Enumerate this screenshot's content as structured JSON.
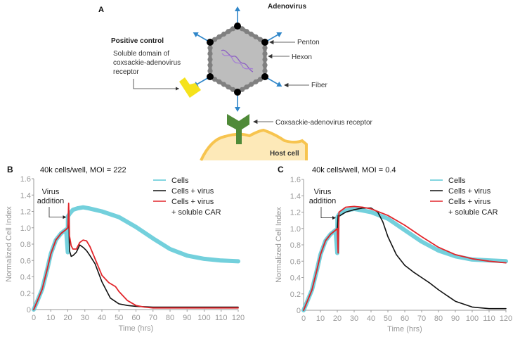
{
  "panel_a": {
    "label": "A",
    "title": "Adenovirus",
    "positive_control": "Positive control",
    "soluble_lines": [
      "Soluble domain of",
      "coxsackie-adenovirus",
      "receptor"
    ],
    "labels": {
      "penton": "Penton",
      "hexon": "Hexon",
      "fiber": "Fiber",
      "receptor": "Coxsackie-adenovirus receptor",
      "host": "Host cell"
    }
  },
  "colors": {
    "cells": "#5bc8d6",
    "virus": "#111111",
    "car": "#e2262b",
    "fiber": "#2f86c9",
    "hexon": "#808080",
    "capsid": "#bdbdbd",
    "dna": "#8b5ec2",
    "car_shape": "#f5e21c",
    "receptor": "#4f8a38",
    "cell_fill": "#fde9b8",
    "cell_edge": "#f7c44f",
    "axis": "#999999"
  },
  "chart_data": [
    {
      "type": "line",
      "panel": "B",
      "title": "40k cells/well, MOI = 222",
      "xlabel": "Time (hrs)",
      "ylabel": "Normalized Cell Index",
      "xlim": [
        0,
        120
      ],
      "ylim": [
        0,
        1.6
      ],
      "xticks": [
        "0",
        "10",
        "20",
        "30",
        "40",
        "50",
        "60",
        "70",
        "80",
        "90",
        "100",
        "110",
        "120"
      ],
      "yticks": [
        "0",
        "0.2",
        "0.4",
        "0.6",
        "0.8",
        "1.0",
        "1.2",
        "1.4",
        "1.6"
      ],
      "annotation": [
        "Virus",
        "addition"
      ],
      "legend": [
        "Cells",
        "Cells + virus",
        "Cells + virus",
        "+ soluble CAR"
      ],
      "legend_position": "top-right",
      "series": [
        {
          "name": "Cells",
          "x": [
            0,
            2,
            5,
            8,
            10,
            13,
            16,
            19,
            20,
            20.1,
            21,
            23,
            26,
            29,
            32,
            40,
            50,
            60,
            70,
            80,
            90,
            100,
            110,
            120
          ],
          "y": [
            0,
            0.1,
            0.25,
            0.5,
            0.68,
            0.85,
            0.93,
            0.98,
            0.7,
            1.14,
            1.17,
            1.22,
            1.24,
            1.25,
            1.24,
            1.2,
            1.13,
            1.01,
            0.87,
            0.74,
            0.66,
            0.62,
            0.6,
            0.59
          ]
        },
        {
          "name": "Cells + virus",
          "x": [
            0,
            2,
            5,
            8,
            10,
            13,
            16,
            19,
            20,
            20.5,
            21,
            22,
            23,
            25,
            27,
            29,
            31,
            33,
            36,
            40,
            45,
            50,
            55,
            60,
            70,
            80,
            90,
            100,
            120
          ],
          "y": [
            0,
            0.1,
            0.25,
            0.5,
            0.68,
            0.85,
            0.93,
            0.98,
            1.0,
            1.18,
            0.72,
            0.65,
            0.66,
            0.7,
            0.79,
            0.76,
            0.72,
            0.66,
            0.56,
            0.34,
            0.14,
            0.07,
            0.05,
            0.04,
            0.03,
            0.03,
            0.03,
            0.03,
            0.03
          ]
        },
        {
          "name": "Cells + virus + soluble CAR",
          "x": [
            0,
            2,
            5,
            8,
            10,
            13,
            16,
            19,
            20,
            20.5,
            21,
            22,
            23,
            25,
            27,
            29,
            31,
            33,
            36,
            40,
            44,
            48,
            50,
            55,
            60,
            65,
            70,
            80,
            90,
            100,
            120
          ],
          "y": [
            0,
            0.1,
            0.25,
            0.5,
            0.68,
            0.85,
            0.93,
            0.98,
            1.0,
            1.3,
            0.9,
            0.78,
            0.74,
            0.74,
            0.82,
            0.85,
            0.84,
            0.77,
            0.62,
            0.42,
            0.33,
            0.28,
            0.22,
            0.11,
            0.05,
            0.03,
            0.02,
            0.02,
            0.02,
            0.02,
            0.02
          ]
        }
      ]
    },
    {
      "type": "line",
      "panel": "C",
      "title": "40k cells/well, MOI = 0.4",
      "xlabel": "Time (hrs)",
      "ylabel": "Normalized Cell Index",
      "xlim": [
        0,
        120
      ],
      "ylim": [
        0,
        1.6
      ],
      "xticks": [
        "0",
        "10",
        "20",
        "30",
        "40",
        "50",
        "60",
        "70",
        "80",
        "90",
        "100",
        "110",
        "120"
      ],
      "yticks": [
        "0",
        "0.2",
        "0.4",
        "0.6",
        "0.8",
        "1.0",
        "1.2",
        "1.4",
        "1.6"
      ],
      "annotation": [
        "Virus",
        "addition"
      ],
      "legend": [
        "Cells",
        "Cells + virus",
        "Cells + virus",
        "+ soluble CAR"
      ],
      "legend_position": "top-right",
      "series": [
        {
          "name": "Cells",
          "x": [
            0,
            2,
            5,
            8,
            10,
            13,
            16,
            19,
            20,
            20.1,
            21,
            25,
            30,
            35,
            40,
            50,
            60,
            70,
            80,
            90,
            100,
            110,
            120
          ],
          "y": [
            0,
            0.1,
            0.25,
            0.5,
            0.68,
            0.85,
            0.93,
            0.98,
            0.7,
            1.14,
            1.17,
            1.22,
            1.24,
            1.22,
            1.2,
            1.12,
            0.98,
            0.84,
            0.73,
            0.66,
            0.62,
            0.61,
            0.6
          ]
        },
        {
          "name": "Cells + virus",
          "x": [
            0,
            2,
            5,
            8,
            10,
            13,
            16,
            19,
            20,
            20.5,
            21,
            25,
            30,
            35,
            40,
            44,
            47,
            50,
            55,
            60,
            65,
            70,
            75,
            80,
            90,
            100,
            110,
            120
          ],
          "y": [
            0,
            0.1,
            0.25,
            0.5,
            0.68,
            0.85,
            0.93,
            0.98,
            1.0,
            1.16,
            1.15,
            1.2,
            1.23,
            1.25,
            1.25,
            1.2,
            1.08,
            0.9,
            0.68,
            0.55,
            0.47,
            0.4,
            0.33,
            0.25,
            0.11,
            0.04,
            0.02,
            0.02
          ]
        },
        {
          "name": "Cells + virus + soluble CAR",
          "x": [
            0,
            2,
            5,
            8,
            10,
            13,
            16,
            19,
            20,
            20.5,
            21,
            25,
            30,
            35,
            40,
            50,
            60,
            70,
            80,
            90,
            100,
            110,
            120
          ],
          "y": [
            0,
            0.1,
            0.25,
            0.5,
            0.68,
            0.85,
            0.93,
            0.98,
            1.0,
            0.7,
            1.2,
            1.26,
            1.27,
            1.26,
            1.24,
            1.16,
            1.04,
            0.9,
            0.77,
            0.68,
            0.63,
            0.6,
            0.58
          ]
        }
      ]
    }
  ]
}
